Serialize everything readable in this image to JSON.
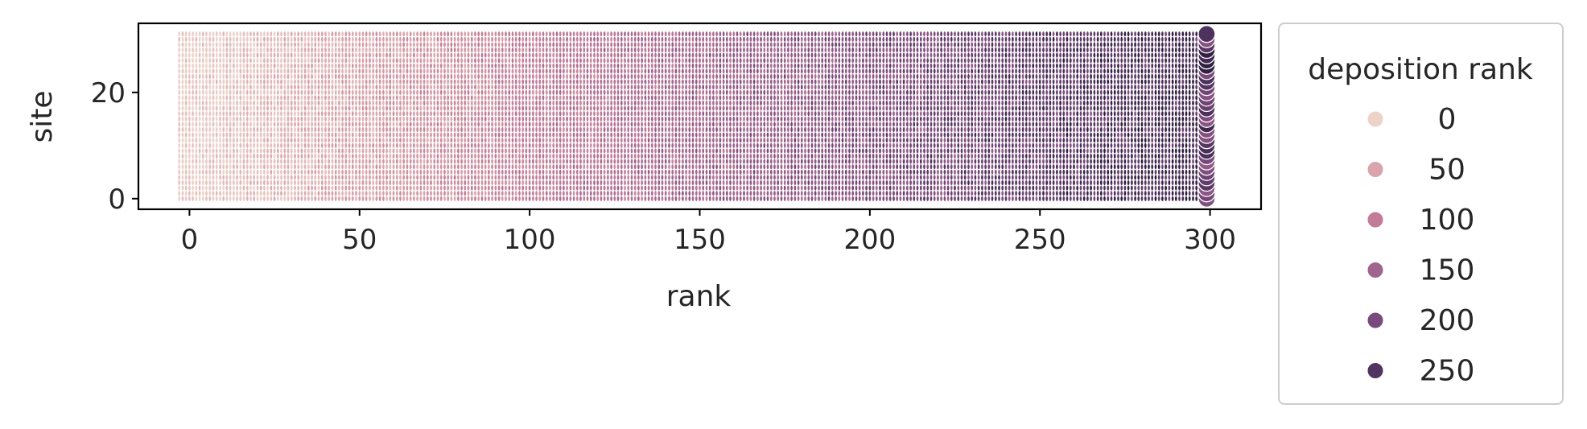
{
  "chart_data": {
    "type": "scatter",
    "title": "",
    "xlabel": "rank",
    "ylabel": "site",
    "xlim": [
      -15,
      315
    ],
    "ylim": [
      -2,
      33
    ],
    "x_ticks": [
      0,
      50,
      100,
      150,
      200,
      250,
      300
    ],
    "y_ticks": [
      0,
      20
    ],
    "x_range_points": [
      -3,
      299
    ],
    "sites": [
      0,
      31
    ],
    "hue_label": "deposition rank",
    "hue_range": [
      0,
      299
    ],
    "legend": {
      "title": "deposition rank",
      "placement": "outside right",
      "entries": [
        {
          "label": "0",
          "color": "#ecd2c8"
        },
        {
          "label": "50",
          "color": "#daa4ac"
        },
        {
          "label": "100",
          "color": "#c27c98"
        },
        {
          "label": "150",
          "color": "#a0658f"
        },
        {
          "label": "200",
          "color": "#7b4a7c"
        },
        {
          "label": "250",
          "color": "#523461"
        }
      ]
    },
    "grid": false
  }
}
